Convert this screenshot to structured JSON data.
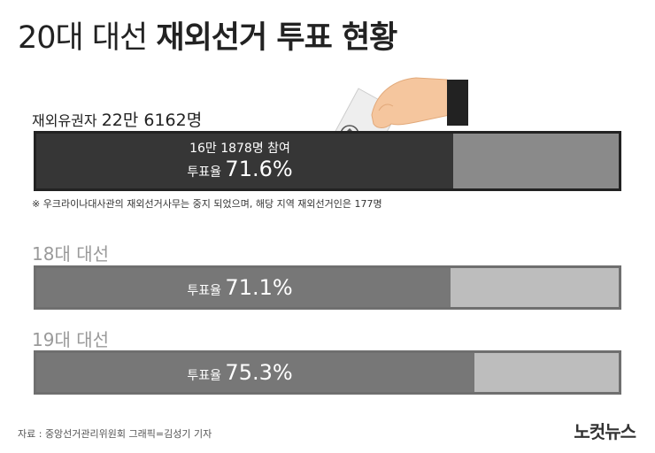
{
  "title": {
    "light": "20대 대선",
    "bold": "재외선거 투표 현황"
  },
  "main": {
    "label_text": "재외유권자 ",
    "label_num": "22만 6162명",
    "participants": "16만 1878명 참여",
    "rate_prefix": "투표율 ",
    "rate_value": "71.6%"
  },
  "note": "※ 우크라이나대사관의 재외선거사무는 중지 되었으며, 해당 지역 재외선거인은 177명",
  "past": [
    {
      "label": "18대 대선",
      "rate_prefix": "투표율 ",
      "rate_value": "71.1%"
    },
    {
      "label": "19대 대선",
      "rate_prefix": "투표율 ",
      "rate_value": "75.3%"
    }
  ],
  "footer": {
    "source": "자료 : 중앙선거관리위원회    그래픽=김성기 기자",
    "logo": "노컷뉴스"
  },
  "chart_data": {
    "type": "bar",
    "orientation": "horizontal",
    "categories": [
      "20대 대선",
      "18대 대선",
      "19대 대선"
    ],
    "values": [
      71.6,
      71.1,
      75.3
    ],
    "xlim": [
      0,
      100
    ],
    "title": "20대 대선 재외선거 투표 현황",
    "grid": false
  },
  "colors": {
    "dark": "#222222",
    "mid": "#777777",
    "light": "#bdbdbd"
  }
}
